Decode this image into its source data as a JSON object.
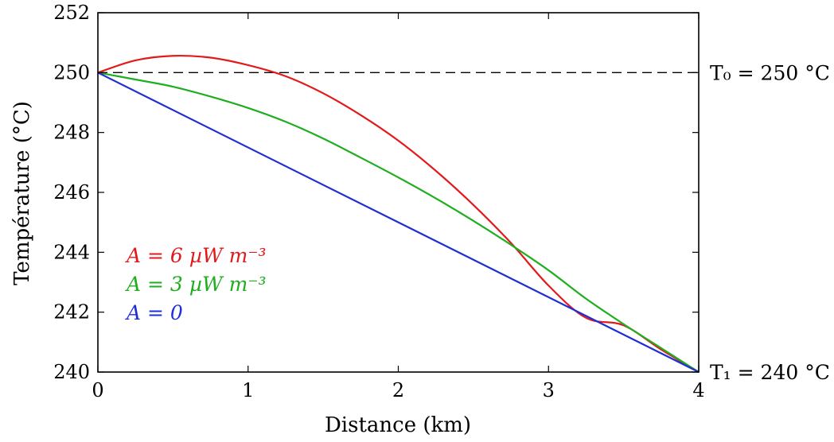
{
  "chart_data": {
    "type": "line",
    "xlabel": "Distance (km)",
    "ylabel": "Température (°C)",
    "xlim": [
      0,
      4
    ],
    "ylim": [
      240,
      252
    ],
    "xticks": [
      0,
      1,
      2,
      3,
      4
    ],
    "yticks": [
      240,
      242,
      244,
      246,
      248,
      250,
      252
    ],
    "grid": false,
    "reference_line": {
      "y": 250,
      "style": "dashed",
      "color": "#000000"
    },
    "annotations": [
      {
        "text": "T₀ = 250 °C",
        "y": 250
      },
      {
        "text": "T₁ = 240 °C",
        "y": 240
      }
    ],
    "legend_placement": "lower-left",
    "series": [
      {
        "name": "A = 6 µW m⁻³",
        "color": "#e31a1c",
        "x": [
          0,
          0.25,
          0.5,
          0.75,
          1.0,
          1.25,
          1.5,
          1.75,
          2.0,
          2.25,
          2.5,
          2.75,
          3.0,
          3.25,
          3.5,
          3.75,
          4.0
        ],
        "y": [
          250,
          250.41,
          250.56,
          250.5,
          250.25,
          249.88,
          249.31,
          248.58,
          247.73,
          246.72,
          245.58,
          244.31,
          242.89,
          241.81,
          241.56,
          240.75,
          240
        ]
      },
      {
        "name": "A = 3 µW m⁻³",
        "color": "#1fae1f",
        "x": [
          0,
          0.25,
          0.5,
          0.75,
          1.0,
          1.25,
          1.5,
          1.75,
          2.0,
          2.25,
          2.5,
          2.75,
          3.0,
          3.25,
          3.5,
          3.75,
          4.0
        ],
        "y": [
          250,
          249.77,
          249.53,
          249.2,
          248.82,
          248.36,
          247.8,
          247.16,
          246.5,
          245.8,
          245.05,
          244.25,
          243.4,
          242.45,
          241.6,
          240.8,
          240
        ]
      },
      {
        "name": "A = 0",
        "color": "#1f2fd6",
        "x": [
          0,
          4
        ],
        "y": [
          250,
          240
        ]
      }
    ]
  }
}
